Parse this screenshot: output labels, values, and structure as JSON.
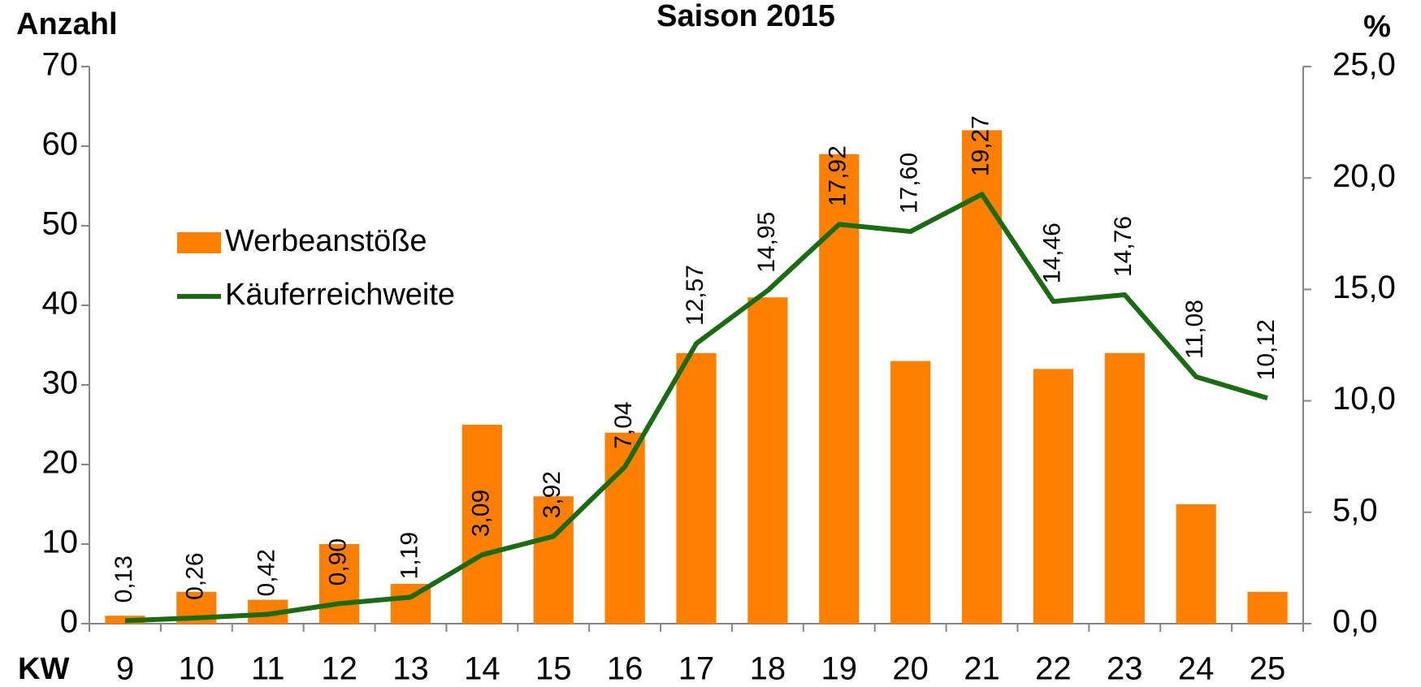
{
  "chart_data": {
    "type": "bar_line",
    "title": "Saison 2015",
    "y_label": "Anzahl",
    "y2_label": "%",
    "x_label": "KW",
    "categories": [
      "9",
      "10",
      "11",
      "12",
      "13",
      "14",
      "15",
      "16",
      "17",
      "18",
      "19",
      "20",
      "21",
      "22",
      "23",
      "24",
      "25"
    ],
    "series": [
      {
        "name": "Werbeanstöße",
        "type": "bar",
        "color": "#ff7f00",
        "values": [
          1,
          4,
          3,
          10,
          5,
          25,
          16,
          24,
          34,
          41,
          59,
          33,
          62,
          32,
          34,
          15,
          4
        ]
      },
      {
        "name": "Käuferreichweite",
        "type": "line",
        "axis": "y2",
        "color": "#1a6b12",
        "values": [
          0.13,
          0.26,
          0.42,
          0.9,
          1.19,
          3.09,
          3.92,
          7.04,
          12.57,
          14.95,
          17.92,
          17.6,
          19.27,
          14.46,
          14.76,
          11.08,
          10.12
        ],
        "value_labels": [
          "0,13",
          "0,26",
          "0,42",
          "0,90",
          "1,19",
          "3,09",
          "3,92",
          "7,04",
          "12,57",
          "14,95",
          "17,92",
          "17,60",
          "19,27",
          "14,46",
          "14,76",
          "11,08",
          "10,12"
        ]
      }
    ],
    "ylim": [
      0,
      70
    ],
    "yticks": [
      0,
      10,
      20,
      30,
      40,
      50,
      60,
      70
    ],
    "y2lim": [
      0,
      25
    ],
    "y2ticks": [
      {
        "value": 0,
        "label": "0,0"
      },
      {
        "value": 5,
        "label": "5,0"
      },
      {
        "value": 10,
        "label": "10,0"
      },
      {
        "value": 15,
        "label": "15,0"
      },
      {
        "value": 20,
        "label": "20,0"
      },
      {
        "value": 25,
        "label": "25,0"
      }
    ]
  }
}
